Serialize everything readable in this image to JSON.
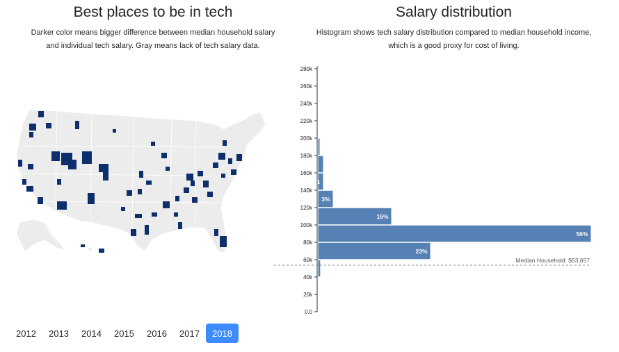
{
  "left": {
    "title": "Best places to be in tech",
    "description": "Darker color means bigger difference between median household salary and individual tech salary. Gray means lack of tech salary data."
  },
  "right": {
    "title": "Salary distribution",
    "description": "Histogram shows tech salary distribution compared to median household income, which is a good proxy for cost of living."
  },
  "colors": {
    "map_base": "#ececec",
    "map_highlight": "#0d2f6b",
    "bar": "#5681b4",
    "active_button": "#3d8bfd"
  },
  "years": {
    "items": [
      "2012",
      "2013",
      "2014",
      "2015",
      "2016",
      "2017",
      "2018"
    ],
    "selected": "2018"
  },
  "chart_data": {
    "type": "bar",
    "orientation": "horizontal",
    "y_axis_ticks": [
      "0.0",
      "20k",
      "40k",
      "60k",
      "80k",
      "100k",
      "120k",
      "140k",
      "160k",
      "180k",
      "200k",
      "220k",
      "240k",
      "260k",
      "280k"
    ],
    "ylim": [
      0,
      280000
    ],
    "bins": [
      {
        "from": 40000,
        "to": 60000,
        "percent": 0.4,
        "label": ""
      },
      {
        "from": 60000,
        "to": 80000,
        "percent": 23,
        "label": "23%"
      },
      {
        "from": 80000,
        "to": 100000,
        "percent": 56,
        "label": "56%"
      },
      {
        "from": 100000,
        "to": 120000,
        "percent": 15,
        "label": "15%"
      },
      {
        "from": 120000,
        "to": 140000,
        "percent": 3,
        "label": "3%"
      },
      {
        "from": 140000,
        "to": 160000,
        "percent": 1,
        "label": "1"
      },
      {
        "from": 160000,
        "to": 180000,
        "percent": 1,
        "label": ""
      },
      {
        "from": 180000,
        "to": 200000,
        "percent": 0.1,
        "label": ""
      }
    ],
    "median": {
      "value": 53657,
      "label": "Median Household: $53,657"
    }
  }
}
